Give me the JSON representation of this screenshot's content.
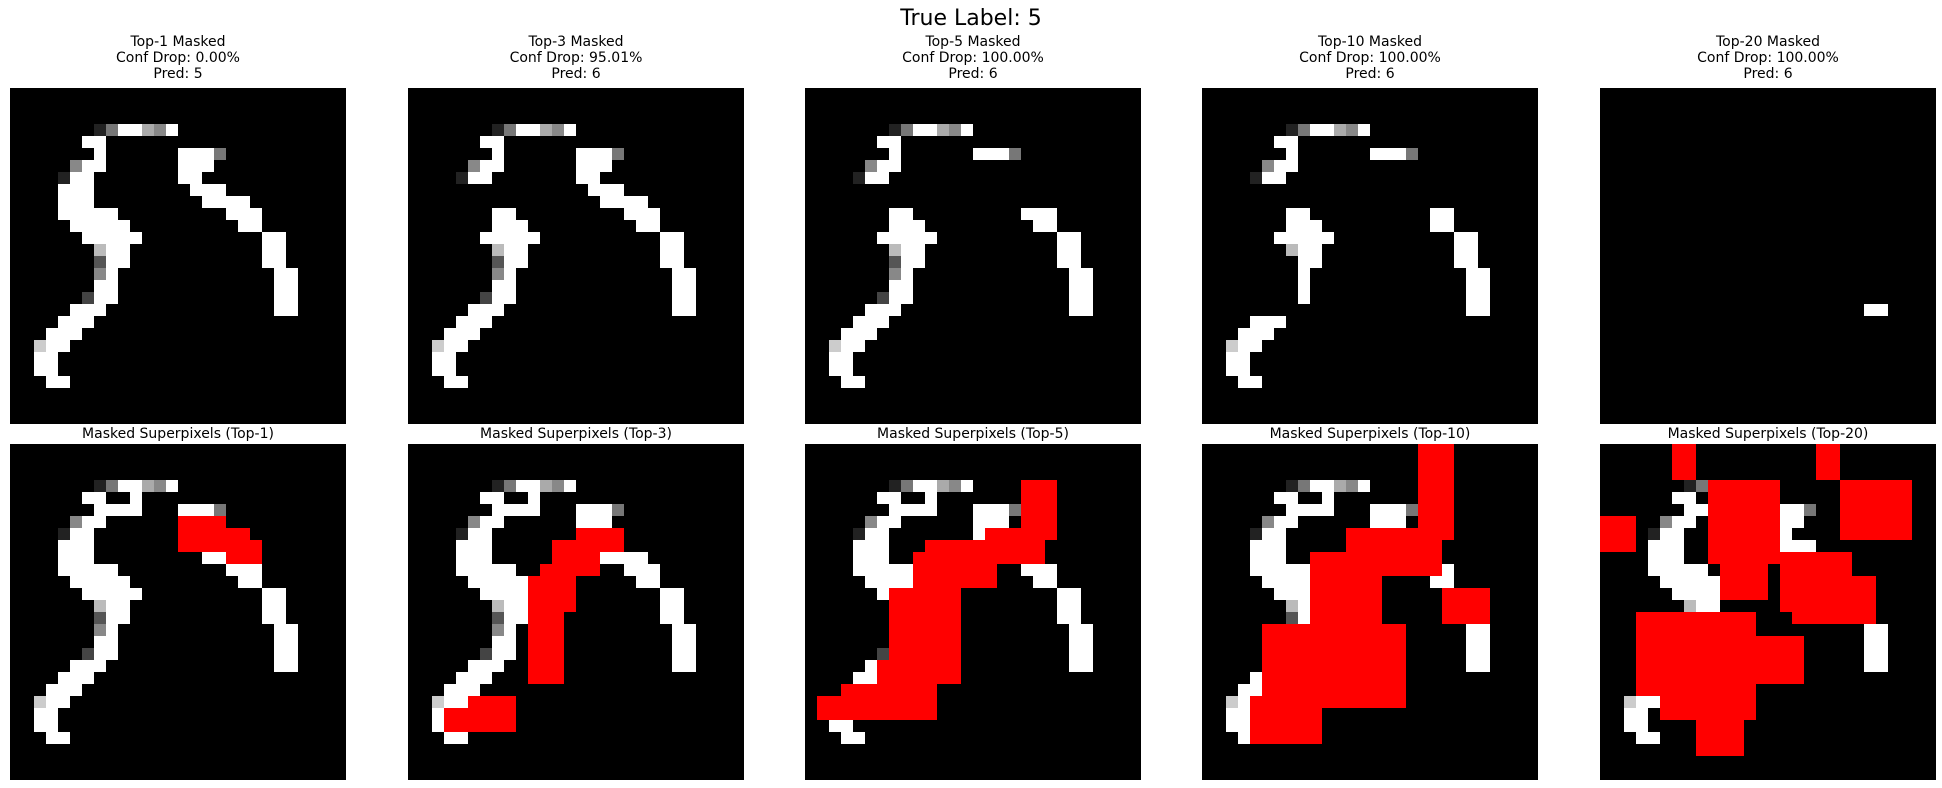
{
  "figure": {
    "suptitle": "True Label: 5"
  },
  "colors": {
    "background": "#000000",
    "highlight": "#ff0000",
    "figure_bg": "#ffffff"
  },
  "grid_size": 28,
  "digit_pixels": [
    [
      3,
      7,
      "#222222",
      1
    ],
    [
      3,
      8,
      "#777777",
      1
    ],
    [
      3,
      9,
      "#ffffff",
      1
    ],
    [
      3,
      10,
      "#ffffff",
      1
    ],
    [
      3,
      11,
      "#aaaaaa",
      1
    ],
    [
      4,
      6,
      "#ffffff",
      1
    ],
    [
      4,
      7,
      "#ffffff",
      1
    ],
    [
      4,
      10,
      "#ffffff",
      1
    ],
    [
      5,
      7,
      "#ffffff",
      1
    ],
    [
      5,
      8,
      "#ffffff",
      1
    ],
    [
      5,
      9,
      "#ffffff",
      1
    ],
    [
      5,
      10,
      "#ffffff",
      1
    ],
    [
      6,
      5,
      "#888888",
      1
    ],
    [
      6,
      6,
      "#ffffff",
      1
    ],
    [
      6,
      7,
      "#ffffff",
      1
    ],
    [
      7,
      4,
      "#222222",
      1
    ],
    [
      7,
      5,
      "#ffffff",
      1
    ],
    [
      7,
      6,
      "#ffffff",
      1
    ],
    [
      8,
      4,
      "#ffffff",
      1
    ],
    [
      8,
      5,
      "#ffffff",
      1
    ],
    [
      8,
      6,
      "#ffffff",
      1
    ],
    [
      9,
      4,
      "#ffffff",
      1
    ],
    [
      9,
      5,
      "#ffffff",
      1
    ],
    [
      9,
      6,
      "#ffffff",
      1
    ],
    [
      10,
      4,
      "#ffffff",
      1
    ],
    [
      10,
      5,
      "#ffffff",
      1
    ],
    [
      10,
      6,
      "#ffffff",
      1
    ],
    [
      10,
      7,
      "#ffffff",
      1
    ],
    [
      10,
      8,
      "#ffffff",
      1
    ],
    [
      11,
      5,
      "#ffffff",
      1
    ],
    [
      11,
      6,
      "#ffffff",
      1
    ],
    [
      11,
      7,
      "#ffffff",
      1
    ],
    [
      11,
      8,
      "#ffffff",
      1
    ],
    [
      11,
      9,
      "#ffffff",
      1
    ],
    [
      12,
      6,
      "#ffffff",
      1
    ],
    [
      12,
      7,
      "#ffffff",
      1
    ],
    [
      12,
      8,
      "#ffffff",
      1
    ],
    [
      12,
      9,
      "#ffffff",
      1
    ],
    [
      13,
      7,
      "#bbbbbb",
      1
    ],
    [
      13,
      8,
      "#ffffff",
      1
    ],
    [
      13,
      9,
      "#ffffff",
      1
    ],
    [
      14,
      7,
      "#555555",
      1
    ],
    [
      14,
      8,
      "#ffffff",
      1
    ],
    [
      14,
      9,
      "#ffffff",
      1
    ],
    [
      15,
      7,
      "#888888",
      1
    ],
    [
      15,
      8,
      "#ffffff",
      1
    ],
    [
      16,
      7,
      "#ffffff",
      1
    ],
    [
      16,
      8,
      "#ffffff",
      1
    ],
    [
      17,
      6,
      "#444444",
      1
    ],
    [
      17,
      7,
      "#ffffff",
      1
    ],
    [
      17,
      8,
      "#ffffff",
      1
    ],
    [
      18,
      5,
      "#ffffff",
      1
    ],
    [
      18,
      6,
      "#ffffff",
      1
    ],
    [
      18,
      7,
      "#ffffff",
      1
    ],
    [
      19,
      4,
      "#ffffff",
      1
    ],
    [
      19,
      5,
      "#ffffff",
      1
    ],
    [
      19,
      6,
      "#ffffff",
      1
    ],
    [
      20,
      3,
      "#ffffff",
      1
    ],
    [
      20,
      4,
      "#ffffff",
      1
    ],
    [
      20,
      5,
      "#ffffff",
      1
    ],
    [
      21,
      2,
      "#cccccc",
      1
    ],
    [
      21,
      3,
      "#ffffff",
      1
    ],
    [
      21,
      4,
      "#ffffff",
      1
    ],
    [
      22,
      2,
      "#ffffff",
      1
    ],
    [
      22,
      3,
      "#ffffff",
      1
    ],
    [
      23,
      2,
      "#ffffff",
      1
    ],
    [
      23,
      3,
      "#ffffff",
      1
    ],
    [
      24,
      3,
      "#ffffff",
      1
    ],
    [
      24,
      4,
      "#ffffff",
      1
    ],
    [
      3,
      12,
      "#888888",
      1
    ],
    [
      3,
      13,
      "#ffffff",
      1
    ],
    [
      12,
      10,
      "#ffffff",
      1
    ],
    [
      5,
      14,
      "#ffffff",
      1
    ],
    [
      5,
      15,
      "#ffffff",
      1
    ],
    [
      5,
      16,
      "#ffffff",
      1
    ],
    [
      5,
      17,
      "#777777",
      1
    ],
    [
      6,
      14,
      "#ffffff",
      1
    ],
    [
      6,
      15,
      "#ffffff",
      1
    ],
    [
      6,
      16,
      "#ffffff",
      1
    ],
    [
      7,
      14,
      "#ffffff",
      1
    ],
    [
      7,
      15,
      "#ffffff",
      1
    ],
    [
      8,
      15,
      "#ffffff",
      1
    ],
    [
      8,
      16,
      "#ffffff",
      1
    ],
    [
      8,
      17,
      "#ffffff",
      1
    ],
    [
      9,
      16,
      "#ffffff",
      1
    ],
    [
      9,
      17,
      "#ffffff",
      1
    ],
    [
      9,
      18,
      "#ffffff",
      1
    ],
    [
      9,
      19,
      "#ffffff",
      1
    ],
    [
      10,
      18,
      "#ffffff",
      1
    ],
    [
      10,
      19,
      "#ffffff",
      1
    ],
    [
      10,
      20,
      "#ffffff",
      1
    ],
    [
      11,
      19,
      "#ffffff",
      1
    ],
    [
      11,
      20,
      "#ffffff",
      1
    ],
    [
      12,
      21,
      "#ffffff",
      1
    ],
    [
      12,
      22,
      "#ffffff",
      1
    ],
    [
      13,
      21,
      "#ffffff",
      1
    ],
    [
      13,
      22,
      "#ffffff",
      1
    ],
    [
      14,
      21,
      "#ffffff",
      1
    ],
    [
      14,
      22,
      "#ffffff",
      1
    ],
    [
      15,
      22,
      "#ffffff",
      1
    ],
    [
      15,
      23,
      "#ffffff",
      1
    ],
    [
      16,
      22,
      "#ffffff",
      1
    ],
    [
      16,
      23,
      "#ffffff",
      1
    ],
    [
      17,
      22,
      "#ffffff",
      1
    ],
    [
      17,
      23,
      "#ffffff",
      1
    ],
    [
      18,
      22,
      "#ffffff",
      1
    ],
    [
      18,
      23,
      "#ffffff",
      1
    ]
  ],
  "panels": [
    {
      "title": "Top-1 Masked\nConf Drop: 0.00%\nPred: 5",
      "overlay_title": "Masked Superpixels (Top-1)",
      "masked_fraction": 0.03
    },
    {
      "title": "Top-3 Masked\nConf Drop: 95.01%\nPred: 6",
      "overlay_title": "Masked Superpixels (Top-3)",
      "masked_fraction": 0.08
    },
    {
      "title": "Top-5 Masked\nConf Drop: 100.00%\nPred: 6",
      "overlay_title": "Masked Superpixels (Top-5)",
      "masked_fraction": 0.16
    },
    {
      "title": "Top-10 Masked\nConf Drop: 100.00%\nPred: 6",
      "overlay_title": "Masked Superpixels (Top-10)",
      "masked_fraction": 0.32
    },
    {
      "title": "Top-20 Masked\nConf Drop: 100.00%\nPred: 6",
      "overlay_title": "Masked Superpixels (Top-20)",
      "masked_fraction": 0.55
    }
  ]
}
